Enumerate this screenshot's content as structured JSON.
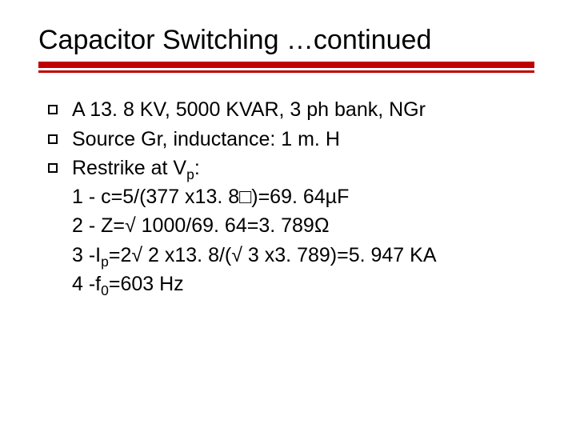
{
  "accent_color": "#c00000",
  "title": "Capacitor Switching …continued",
  "bullets": [
    " A 13. 8 KV, 5000 KVAR, 3 ph bank, NGr",
    "Source Gr, inductance: 1 m. H",
    "Restrike at V"
  ],
  "bullet3_sub": "p",
  "bullet3_tail": ":",
  "calc1": "1 - c=5/(377 x13. 8□)=69. 64µF",
  "calc2": "2 - Z=√ 1000/69. 64=3. 789Ω",
  "calc3_pre": "3 -I",
  "calc3_sub": "p",
  "calc3_post": "=2√ 2 x13. 8/(√ 3 x3. 789)=5. 947 KA",
  "calc4_pre": "4 -f",
  "calc4_sub": "0",
  "calc4_post": "=603 Hz",
  "title_fontsize": 34,
  "body_fontsize": 25,
  "background_color": "#ffffff",
  "text_color": "#000000"
}
